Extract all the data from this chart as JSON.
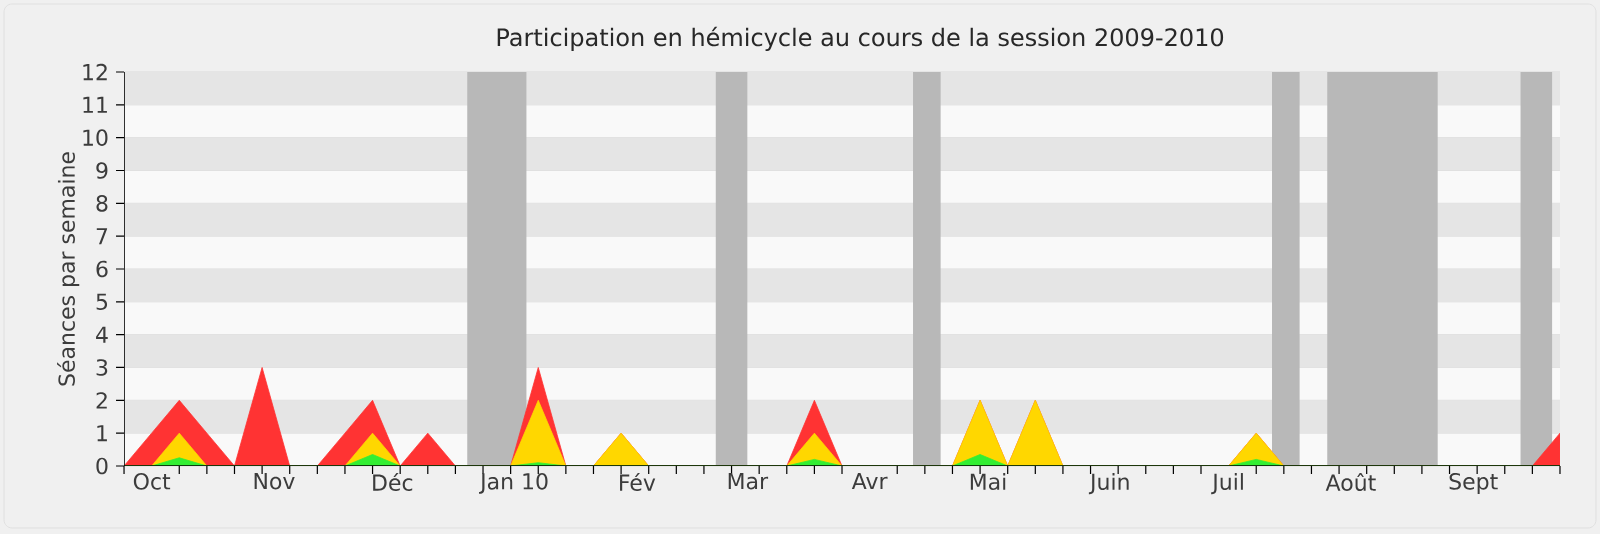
{
  "chart_data": {
    "type": "area",
    "title": "Participation en hémicycle au cours de la session 2009-2010",
    "ylabel": "Séances par semaine",
    "x": [
      "2009-09-24",
      "2009-10-01",
      "2009-10-08",
      "2009-10-15",
      "2009-10-22",
      "2009-10-29",
      "2009-11-05",
      "2009-11-12",
      "2009-11-19",
      "2009-11-26",
      "2009-12-03",
      "2009-12-10",
      "2009-12-17",
      "2009-12-24",
      "2009-12-31",
      "2010-01-07",
      "2010-01-14",
      "2010-01-21",
      "2010-01-28",
      "2010-02-04",
      "2010-02-11",
      "2010-02-18",
      "2010-02-25",
      "2010-03-04",
      "2010-03-11",
      "2010-03-18",
      "2010-03-25",
      "2010-04-01",
      "2010-04-08",
      "2010-04-15",
      "2010-04-22",
      "2010-04-29",
      "2010-05-06",
      "2010-05-13",
      "2010-05-20",
      "2010-05-27",
      "2010-06-03",
      "2010-06-10",
      "2010-06-17",
      "2010-06-24",
      "2010-07-01",
      "2010-07-08",
      "2010-07-15",
      "2010-07-22",
      "2010-07-29",
      "2010-08-05",
      "2010-08-12",
      "2010-08-19",
      "2010-08-26",
      "2010-09-02",
      "2010-09-09",
      "2010-09-16",
      "2010-09-23"
    ],
    "series": [
      {
        "color": "#ff3333",
        "values": [
          0,
          1,
          2,
          1,
          0,
          3,
          0,
          0,
          1,
          2,
          0,
          1,
          0,
          0,
          0,
          3,
          0,
          0,
          1,
          0,
          0,
          0,
          0,
          0,
          0,
          2,
          0,
          0,
          0,
          0,
          0,
          2,
          0,
          2,
          0,
          0,
          0,
          0,
          0,
          0,
          0,
          1,
          0,
          0,
          0,
          0,
          0,
          0,
          0,
          0,
          0,
          0,
          1
        ]
      },
      {
        "color": "#ffd700",
        "values": [
          0,
          0,
          1,
          0,
          0,
          0,
          0,
          0,
          0,
          1,
          0,
          0,
          0,
          0,
          0,
          2,
          0,
          0,
          1,
          0,
          0,
          0,
          0,
          0,
          0,
          1,
          0,
          0,
          0,
          0,
          0,
          2,
          0,
          2,
          0,
          0,
          0,
          0,
          0,
          0,
          0,
          1,
          0,
          0,
          0,
          0,
          0,
          0,
          0,
          0,
          0,
          0,
          0
        ]
      },
      {
        "color": "#33ee33",
        "values": [
          0,
          0,
          0.25,
          0,
          0,
          0,
          0,
          0,
          0,
          0.35,
          0,
          0,
          0,
          0,
          0,
          0.1,
          0,
          0,
          0,
          0,
          0,
          0,
          0,
          0,
          0,
          0.2,
          0,
          0,
          0,
          0,
          0,
          0.35,
          0,
          0,
          0,
          0,
          0,
          0,
          0,
          0,
          0,
          0.2,
          0,
          0,
          0,
          0,
          0,
          0,
          0,
          0,
          0,
          0,
          0
        ]
      }
    ],
    "xlim": [
      "2009-09-24",
      "2010-09-23"
    ],
    "ylim": [
      0,
      12
    ],
    "yticks": [
      0,
      1,
      2,
      3,
      4,
      5,
      6,
      7,
      8,
      9,
      10,
      11,
      12
    ],
    "xticks": [
      {
        "value": "2009-09-24",
        "label": null
      },
      {
        "value": "2009-10-01",
        "label": "Oct"
      },
      {
        "value": "2009-10-08",
        "label": null
      },
      {
        "value": "2009-10-15",
        "label": null
      },
      {
        "value": "2009-10-22",
        "label": null
      },
      {
        "value": "2009-10-29",
        "label": null
      },
      {
        "value": "2009-11-01",
        "label": "Nov"
      },
      {
        "value": "2009-11-05",
        "label": null
      },
      {
        "value": "2009-11-12",
        "label": null
      },
      {
        "value": "2009-11-19",
        "label": null
      },
      {
        "value": "2009-11-26",
        "label": null
      },
      {
        "value": "2009-12-01",
        "label": "Déc"
      },
      {
        "value": "2009-12-03",
        "label": null
      },
      {
        "value": "2009-12-10",
        "label": null
      },
      {
        "value": "2009-12-17",
        "label": null
      },
      {
        "value": "2009-12-24",
        "label": null
      },
      {
        "value": "2009-12-31",
        "label": null
      },
      {
        "value": "2010-01-01",
        "label": "Jan 10"
      },
      {
        "value": "2010-01-07",
        "label": null
      },
      {
        "value": "2010-01-14",
        "label": null
      },
      {
        "value": "2010-01-21",
        "label": null
      },
      {
        "value": "2010-01-28",
        "label": null
      },
      {
        "value": "2010-02-01",
        "label": "Fév"
      },
      {
        "value": "2010-02-04",
        "label": null
      },
      {
        "value": "2010-02-11",
        "label": null
      },
      {
        "value": "2010-02-18",
        "label": null
      },
      {
        "value": "2010-02-25",
        "label": null
      },
      {
        "value": "2010-03-01",
        "label": "Mar"
      },
      {
        "value": "2010-03-04",
        "label": null
      },
      {
        "value": "2010-03-11",
        "label": null
      },
      {
        "value": "2010-03-18",
        "label": null
      },
      {
        "value": "2010-03-25",
        "label": null
      },
      {
        "value": "2010-04-01",
        "label": "Avr"
      },
      {
        "value": "2010-04-08",
        "label": null
      },
      {
        "value": "2010-04-15",
        "label": null
      },
      {
        "value": "2010-04-22",
        "label": null
      },
      {
        "value": "2010-04-29",
        "label": null
      },
      {
        "value": "2010-05-01",
        "label": "Mai"
      },
      {
        "value": "2010-05-06",
        "label": null
      },
      {
        "value": "2010-05-13",
        "label": null
      },
      {
        "value": "2010-05-20",
        "label": null
      },
      {
        "value": "2010-05-27",
        "label": null
      },
      {
        "value": "2010-06-01",
        "label": "Juin"
      },
      {
        "value": "2010-06-03",
        "label": null
      },
      {
        "value": "2010-06-10",
        "label": null
      },
      {
        "value": "2010-06-17",
        "label": null
      },
      {
        "value": "2010-06-24",
        "label": null
      },
      {
        "value": "2010-07-01",
        "label": "Juil"
      },
      {
        "value": "2010-07-08",
        "label": null
      },
      {
        "value": "2010-07-15",
        "label": null
      },
      {
        "value": "2010-07-22",
        "label": null
      },
      {
        "value": "2010-07-29",
        "label": null
      },
      {
        "value": "2010-08-01",
        "label": "Août"
      },
      {
        "value": "2010-08-05",
        "label": null
      },
      {
        "value": "2010-08-12",
        "label": null
      },
      {
        "value": "2010-08-19",
        "label": null
      },
      {
        "value": "2010-08-26",
        "label": null
      },
      {
        "value": "2010-09-01",
        "label": "Sept"
      },
      {
        "value": "2010-09-02",
        "label": null
      },
      {
        "value": "2010-09-09",
        "label": null
      },
      {
        "value": "2010-09-16",
        "label": null
      },
      {
        "value": "2010-09-23",
        "label": null
      }
    ],
    "bands": [
      {
        "axis": "x",
        "from": "2009-12-20",
        "to": "2010-01-04",
        "color": "#b8b8b8"
      },
      {
        "axis": "x",
        "from": "2010-02-21",
        "to": "2010-03-01",
        "color": "#b8b8b8"
      },
      {
        "axis": "x",
        "from": "2010-04-12",
        "to": "2010-04-19",
        "color": "#b8b8b8"
      },
      {
        "axis": "x",
        "from": "2010-07-12",
        "to": "2010-07-19",
        "color": "#b8b8b8"
      },
      {
        "axis": "x",
        "from": "2010-07-26",
        "to": "2010-08-23",
        "color": "#b8b8b8"
      },
      {
        "axis": "x",
        "from": "2010-09-13",
        "to": "2010-09-21",
        "color": "#b8b8b8"
      }
    ],
    "grid": "y"
  }
}
